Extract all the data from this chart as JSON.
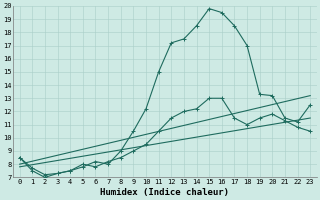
{
  "xlabel": "Humidex (Indice chaleur)",
  "ylabel": "",
  "xlim": [
    -0.5,
    23.5
  ],
  "ylim": [
    7,
    20
  ],
  "xticks": [
    0,
    1,
    2,
    3,
    4,
    5,
    6,
    7,
    8,
    9,
    10,
    11,
    12,
    13,
    14,
    15,
    16,
    17,
    18,
    19,
    20,
    21,
    22,
    23
  ],
  "yticks": [
    7,
    8,
    9,
    10,
    11,
    12,
    13,
    14,
    15,
    16,
    17,
    18,
    19,
    20
  ],
  "bg_color": "#ceeae4",
  "grid_color": "#aacfc8",
  "line_color": "#1e6b5e",
  "line1_x": [
    0,
    1,
    2,
    3,
    4,
    5,
    6,
    7,
    8,
    9,
    10,
    11,
    12,
    13,
    14,
    15,
    16,
    17,
    18,
    19,
    20,
    21,
    22,
    23
  ],
  "line1_y": [
    8.5,
    7.5,
    7.0,
    7.3,
    7.5,
    7.8,
    8.2,
    8.0,
    9.0,
    10.5,
    12.2,
    15.0,
    17.2,
    17.5,
    18.5,
    19.8,
    19.5,
    18.5,
    17.0,
    13.3,
    13.2,
    11.5,
    11.2,
    12.5
  ],
  "line2_x": [
    0,
    1,
    2,
    3,
    4,
    5,
    6,
    7,
    8,
    9,
    10,
    11,
    12,
    13,
    14,
    15,
    16,
    17,
    18,
    19,
    20,
    21,
    22,
    23
  ],
  "line2_y": [
    8.5,
    7.7,
    7.2,
    7.3,
    7.5,
    8.0,
    7.8,
    8.2,
    8.5,
    9.0,
    9.5,
    10.5,
    11.5,
    12.0,
    12.2,
    13.0,
    13.0,
    11.5,
    11.0,
    11.5,
    11.8,
    11.3,
    10.8,
    10.5
  ],
  "line3_x": [
    0,
    23
  ],
  "line3_y": [
    8.0,
    13.2
  ],
  "line4_x": [
    0,
    23
  ],
  "line4_y": [
    7.8,
    11.5
  ],
  "marker_size": 2.5,
  "linewidth": 0.8
}
